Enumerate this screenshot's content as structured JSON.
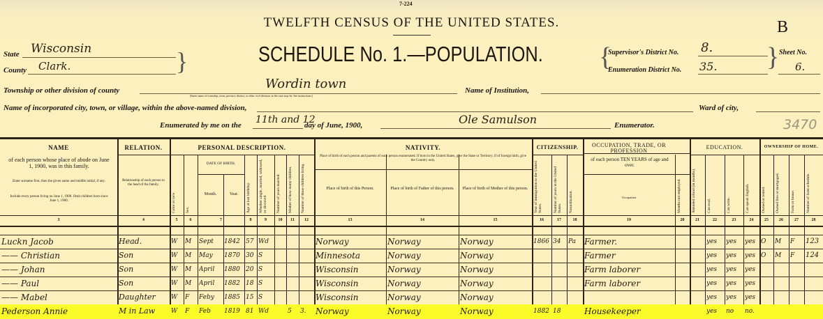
{
  "form_number": "7-224",
  "title": "TWELFTH CENSUS OF THE UNITED STATES.",
  "sheet_letter": "B",
  "schedule_title": "SCHEDULE No. 1.—POPULATION.",
  "state": {
    "label": "State",
    "value": "Wisconsin"
  },
  "county": {
    "label": "County",
    "value": "Clark."
  },
  "supervisor_district": {
    "label": "Supervisor's District No.",
    "value": "8."
  },
  "enumeration_district": {
    "label": "Enumeration District No.",
    "value": "35."
  },
  "sheet": {
    "label": "Sheet No.",
    "value": "6."
  },
  "township": {
    "label": "Township or other division of county",
    "value": "Wordin town",
    "note": "[Insert name of township, town, precinct, district, or other civil division, as the case may be. See instructions.]"
  },
  "institution": {
    "label": "Name of Institution,"
  },
  "incorporated_place": {
    "label": "Name of incorporated city, town, or village, within the above-named division,"
  },
  "ward": {
    "label": "Ward of city,"
  },
  "enumerated": {
    "prefix": "Enumerated by me on the",
    "days": "11th and 12",
    "suffix": "day of June, 1900,",
    "enumerator_name": "Ole Samulson",
    "enumerator_label": "Enumerator."
  },
  "pencil_number": "3470",
  "highlight_color": "#fbfb2a",
  "header": {
    "groups": {
      "name": "NAME",
      "relation": "RELATION.",
      "personal": "PERSONAL DESCRIPTION.",
      "nativity": "NATIVITY.",
      "citizenship": "CITIZENSHIP.",
      "occupation": "OCCUPATION, TRADE, OR PROFESSION",
      "education": "EDUCATION.",
      "ownership": "OWNERSHIP OF HOME."
    },
    "name_desc": "of each person whose place of abode on June 1, 1900, was in this family.",
    "name_note1": "Enter surname first, then the given name and middle initial, if any.",
    "name_note2": "Include every person living on June 1, 1900. Omit children born since June 1, 1900.",
    "relation_desc": "Relationship of each person to the head of the family.",
    "date_of_birth": "DATE OF BIRTH.",
    "month": "Month.",
    "year": "Year.",
    "nativity_desc": "Place of birth of each person and parents of each person enumerated. If born in the United States, give the State or Territory; if of foreign birth, give the Country only.",
    "birth_person": "Place of birth of this Person.",
    "birth_father": "Place of birth of Father of this person.",
    "birth_mother": "Place of birth of Mother of this person.",
    "occupation_desc": "of each person TEN YEARS of age and over.",
    "occupation_sub": "Occupation",
    "vertical_labels": {
      "5": "Color or race.",
      "6": "Sex.",
      "8": "Age at last birthday.",
      "9": "Whether single, married, widowed, or divorced.",
      "10": "Number of years married.",
      "11": "Mother of how many children.",
      "12": "Number of these children living.",
      "16": "Year of immigration to the United States.",
      "17": "Number of years in the United States.",
      "18": "Naturalization.",
      "20": "Months not employed.",
      "21": "Attended school (in months).",
      "22": "Can read.",
      "23": "Can write.",
      "24": "Can speak English.",
      "25": "Owned or rented.",
      "26": "Owned free or mortgaged.",
      "27": "Farm or house.",
      "28": "Number of farm schedule."
    },
    "column_numbers": [
      "3",
      "4",
      "5",
      "6",
      "7",
      "8",
      "9",
      "10",
      "11",
      "12",
      "13",
      "14",
      "15",
      "16",
      "17",
      "18",
      "19",
      "20",
      "21",
      "22",
      "23",
      "24",
      "25",
      "26",
      "27",
      "28"
    ]
  },
  "rows": [
    {
      "name": "Luckn Jacob",
      "relation": "Head.",
      "color": "W",
      "sex": "M",
      "month": "Sept",
      "year": "1842",
      "age": "57",
      "marital": "Wd",
      "years_married": "",
      "children_born": "",
      "children_living": "",
      "birthplace": "Norway",
      "father_birthplace": "Norway",
      "mother_birthplace": "Norway",
      "immigration_year": "1866",
      "years_in_us": "34",
      "naturalization": "Pa",
      "occupation": "Farmer.",
      "months_unemployed": "",
      "school": "",
      "read": "yes",
      "write": "yes",
      "english": "yes",
      "owned": "O",
      "free_mortgaged": "M",
      "farm_house": "F",
      "farm_schedule": "123",
      "highlighted": false
    },
    {
      "name": "—— Christian",
      "relation": "Son",
      "color": "W",
      "sex": "M",
      "month": "May",
      "year": "1870",
      "age": "30",
      "marital": "S",
      "years_married": "",
      "children_born": "",
      "children_living": "",
      "birthplace": "Minnesota",
      "father_birthplace": "Norway",
      "mother_birthplace": "Norway",
      "immigration_year": "",
      "years_in_us": "",
      "naturalization": "",
      "occupation": "Farmer",
      "months_unemployed": "",
      "school": "",
      "read": "yes",
      "write": "yes",
      "english": "yes",
      "owned": "O",
      "free_mortgaged": "M",
      "farm_house": "F",
      "farm_schedule": "124",
      "highlighted": false
    },
    {
      "name": "—— Johan",
      "relation": "Son",
      "color": "W",
      "sex": "M",
      "month": "April",
      "year": "1880",
      "age": "20",
      "marital": "S",
      "years_married": "",
      "children_born": "",
      "children_living": "",
      "birthplace": "Wisconsin",
      "father_birthplace": "Norway",
      "mother_birthplace": "Norway",
      "immigration_year": "",
      "years_in_us": "",
      "naturalization": "",
      "occupation": "Farm laborer",
      "months_unemployed": "",
      "school": "",
      "read": "yes",
      "write": "yes",
      "english": "yes",
      "owned": "",
      "free_mortgaged": "",
      "farm_house": "",
      "farm_schedule": "",
      "highlighted": false
    },
    {
      "name": "—— Paul",
      "relation": "Son",
      "color": "W",
      "sex": "M",
      "month": "April",
      "year": "1882",
      "age": "18",
      "marital": "S",
      "years_married": "",
      "children_born": "",
      "children_living": "",
      "birthplace": "Wisconsin",
      "father_birthplace": "Norway",
      "mother_birthplace": "Norway",
      "immigration_year": "",
      "years_in_us": "",
      "naturalization": "",
      "occupation": "Farm laborer",
      "months_unemployed": "",
      "school": "",
      "read": "yes",
      "write": "yes",
      "english": "yes",
      "owned": "",
      "free_mortgaged": "",
      "farm_house": "",
      "farm_schedule": "",
      "highlighted": false
    },
    {
      "name": "—— Mabel",
      "relation": "Daughter",
      "color": "W",
      "sex": "F",
      "month": "Feby",
      "year": "1885",
      "age": "15",
      "marital": "S",
      "years_married": "",
      "children_born": "",
      "children_living": "",
      "birthplace": "Wisconsin",
      "father_birthplace": "Norway",
      "mother_birthplace": "Norway",
      "immigration_year": "",
      "years_in_us": "",
      "naturalization": "",
      "occupation": "",
      "months_unemployed": "",
      "school": "",
      "read": "yes",
      "write": "yes",
      "english": "yes",
      "owned": "",
      "free_mortgaged": "",
      "farm_house": "",
      "farm_schedule": "",
      "highlighted": false
    },
    {
      "name": "Pederson Annie",
      "relation": "M in Law",
      "color": "W",
      "sex": "F",
      "month": "Feb",
      "year": "1819",
      "age": "81",
      "marital": "Wd",
      "years_married": "",
      "children_born": "5",
      "children_living": "3.",
      "birthplace": "Norway",
      "father_birthplace": "Norway",
      "mother_birthplace": "Norway",
      "immigration_year": "1882",
      "years_in_us": "18",
      "naturalization": "",
      "occupation": "Housekeeper",
      "months_unemployed": "",
      "school": "",
      "read": "yes",
      "write": "no",
      "english": "no.",
      "owned": "",
      "free_mortgaged": "",
      "farm_house": "",
      "farm_schedule": "",
      "highlighted": true
    }
  ]
}
